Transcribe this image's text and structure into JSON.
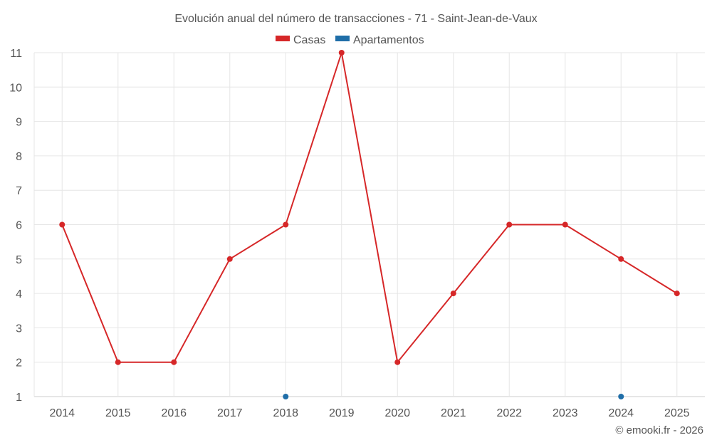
{
  "chart_data": {
    "type": "line",
    "title": "Evolución anual del número de transacciones - 71 - Saint-Jean-de-Vaux",
    "x": [
      "2014",
      "2015",
      "2016",
      "2017",
      "2018",
      "2019",
      "2020",
      "2021",
      "2022",
      "2023",
      "2024",
      "2025"
    ],
    "ylim": [
      1,
      11
    ],
    "yticks": [
      1,
      2,
      3,
      4,
      5,
      6,
      7,
      8,
      9,
      10,
      11
    ],
    "grid": true,
    "legend_position": "top",
    "series": [
      {
        "name": "Casas",
        "color": "#d62728",
        "values": [
          6,
          2,
          2,
          5,
          6,
          11,
          2,
          4,
          6,
          6,
          5,
          4
        ]
      },
      {
        "name": "Apartamentos",
        "color": "#1f6ea8",
        "values": [
          null,
          null,
          null,
          null,
          1,
          null,
          null,
          null,
          null,
          null,
          1,
          null
        ]
      }
    ]
  },
  "credit": "© emooki.fr - 2026"
}
